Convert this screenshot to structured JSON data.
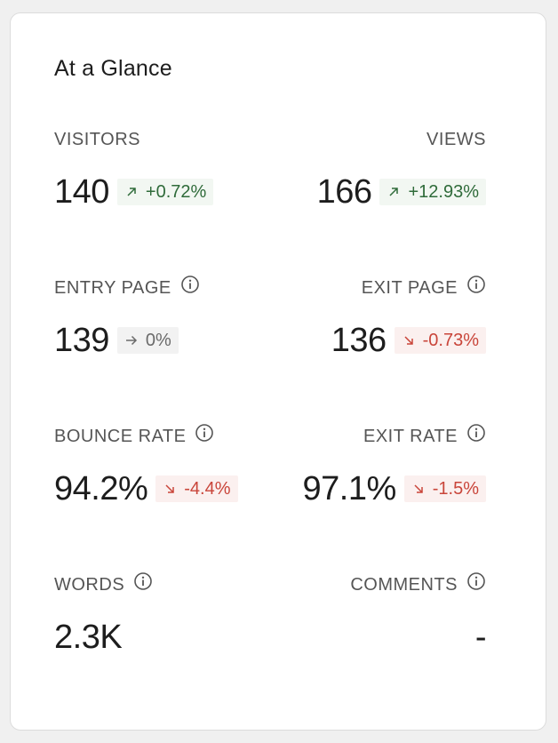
{
  "card": {
    "title": "At a Glance"
  },
  "stats": {
    "visitors": {
      "label": "VISITORS",
      "value": "140",
      "change": "+0.72%",
      "trend": "up"
    },
    "views": {
      "label": "VIEWS",
      "value": "166",
      "change": "+12.93%",
      "trend": "up"
    },
    "entry_page": {
      "label": "ENTRY PAGE",
      "value": "139",
      "change": "0%",
      "trend": "flat"
    },
    "exit_page": {
      "label": "EXIT PAGE",
      "value": "136",
      "change": "-0.73%",
      "trend": "down"
    },
    "bounce_rate": {
      "label": "BOUNCE RATE",
      "value": "94.2%",
      "change": "-4.4%",
      "trend": "down"
    },
    "exit_rate": {
      "label": "EXIT RATE",
      "value": "97.1%",
      "change": "-1.5%",
      "trend": "down"
    },
    "words": {
      "label": "WORDS",
      "value": "2.3K"
    },
    "comments": {
      "label": "COMMENTS",
      "value": "-"
    }
  },
  "colors": {
    "up": "#2f6b3a",
    "down": "#c9453a",
    "flat": "#6a6a6a"
  },
  "icons": {
    "info": "info-circle-icon",
    "up": "arrow-up-right-icon",
    "down": "arrow-down-right-icon",
    "flat": "arrow-right-icon"
  }
}
